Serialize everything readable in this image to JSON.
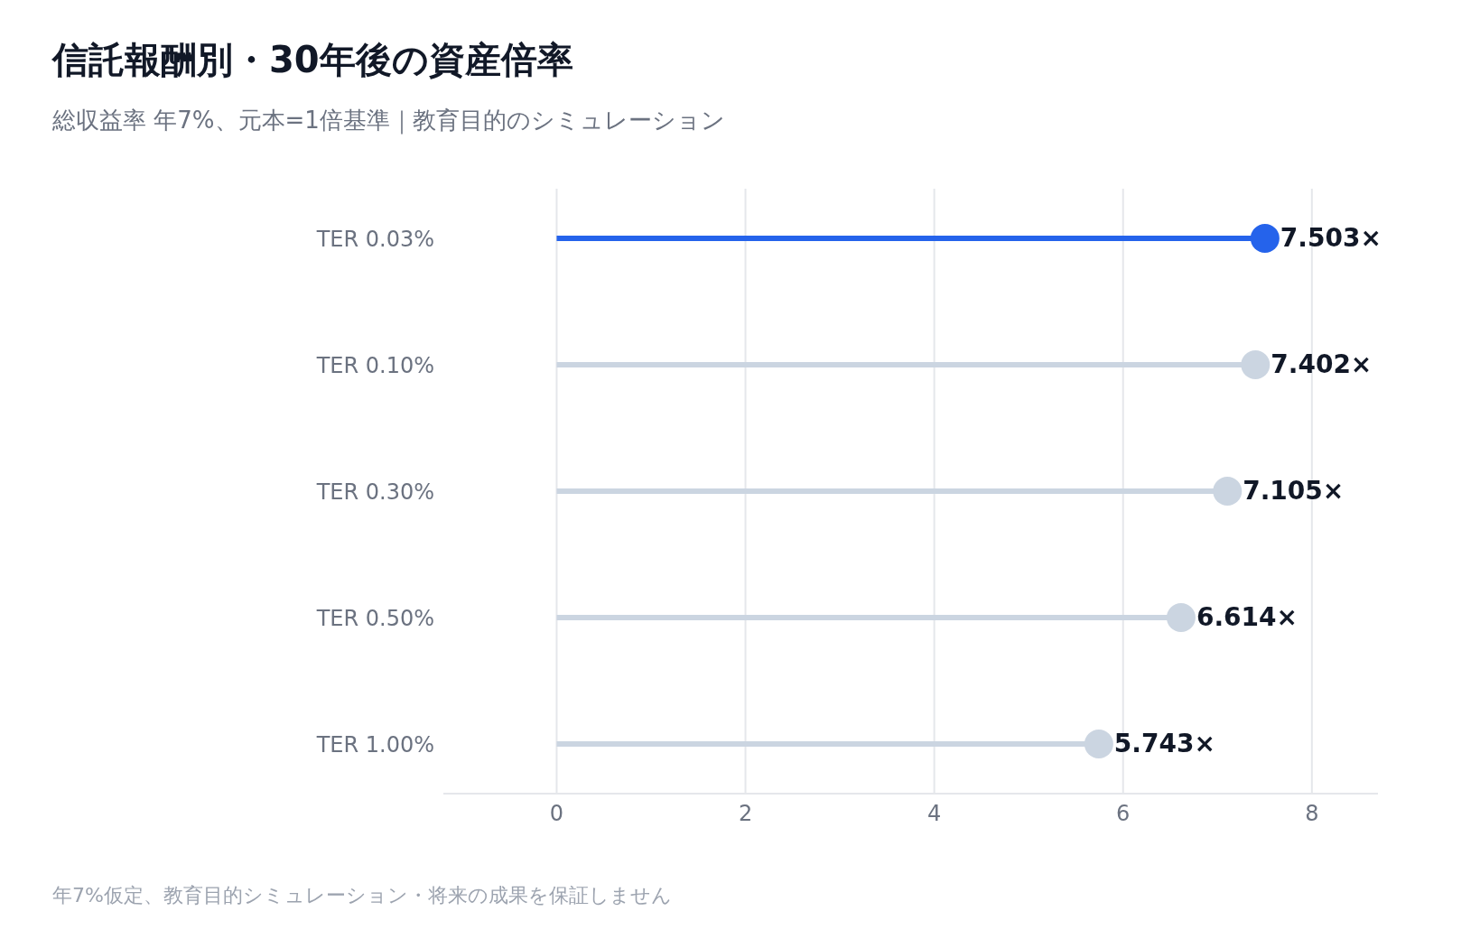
{
  "chart_data": {
    "type": "lollipop",
    "orientation": "horizontal",
    "title": "信託報酬別・30年後の資産倍率",
    "subtitle": "総収益率 年7%、元本=1倍基準｜教育目的のシミュレーション",
    "categories": [
      "TER 0.03%",
      "TER 0.10%",
      "TER 0.30%",
      "TER 0.50%",
      "TER 1.00%"
    ],
    "values": [
      7.503,
      7.402,
      7.105,
      6.614,
      5.743
    ],
    "colors": [
      "#2563eb",
      "#cbd5e1",
      "#cbd5e1",
      "#cbd5e1",
      "#cbd5e1"
    ],
    "value_labels": [
      "7.503×",
      "7.402×",
      "7.105×",
      "6.614×",
      "5.743×"
    ],
    "xlim": [
      -1.2,
      8.7
    ],
    "xticks": [
      0,
      2,
      4,
      6,
      8
    ],
    "grid": "x",
    "marker": "circle",
    "annotations": [
      "年7%仮定、教育目的シミュレーション・将来の成果を保証しません"
    ]
  }
}
